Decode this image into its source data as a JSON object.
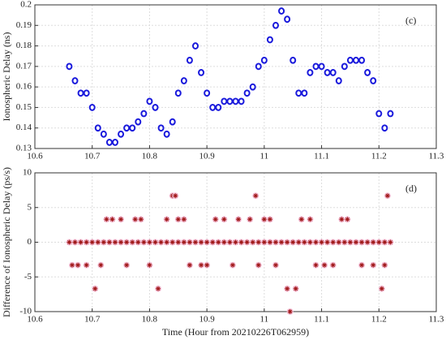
{
  "chart_data": [
    {
      "type": "scatter",
      "ylabel": "Ionospheric Delay (ns)",
      "annotation": "(c)",
      "color": "#1a1adc",
      "grid": true,
      "xlim": [
        10.6,
        11.3
      ],
      "xticks": [
        10.6,
        10.7,
        10.8,
        10.9,
        11,
        11.1,
        11.2,
        11.3
      ],
      "ylim": [
        0.13,
        0.2
      ],
      "yticks": [
        0.13,
        0.14,
        0.15,
        0.16,
        0.17,
        0.18,
        0.19,
        0.2
      ],
      "x": [
        10.66,
        10.67,
        10.68,
        10.69,
        10.7,
        10.71,
        10.72,
        10.73,
        10.74,
        10.75,
        10.76,
        10.77,
        10.78,
        10.79,
        10.8,
        10.81,
        10.82,
        10.83,
        10.84,
        10.85,
        10.86,
        10.87,
        10.88,
        10.89,
        10.9,
        10.91,
        10.92,
        10.93,
        10.94,
        10.95,
        10.96,
        10.97,
        10.98,
        10.99,
        11.0,
        11.01,
        11.02,
        11.03,
        11.04,
        11.05,
        11.06,
        11.07,
        11.08,
        11.09,
        11.1,
        11.11,
        11.12,
        11.13,
        11.14,
        11.15,
        11.16,
        11.17,
        11.18,
        11.19,
        11.2,
        11.21,
        11.22
      ],
      "values": [
        0.17,
        0.163,
        0.157,
        0.157,
        0.15,
        0.14,
        0.137,
        0.133,
        0.133,
        0.137,
        0.14,
        0.14,
        0.143,
        0.147,
        0.153,
        0.15,
        0.14,
        0.137,
        0.143,
        0.157,
        0.163,
        0.173,
        0.18,
        0.167,
        0.157,
        0.15,
        0.15,
        0.153,
        0.153,
        0.153,
        0.153,
        0.157,
        0.16,
        0.17,
        0.173,
        0.183,
        0.19,
        0.197,
        0.193,
        0.173,
        0.157,
        0.157,
        0.167,
        0.17,
        0.17,
        0.167,
        0.167,
        0.163,
        0.17,
        0.173,
        0.173,
        0.173,
        0.167,
        0.163,
        0.147,
        0.14,
        0.147
      ]
    },
    {
      "type": "scatter",
      "ylabel": "Difference of Ionospheric Delay  (ps/s)",
      "xlabel": "Time (Hour from 20210226T062959)",
      "annotation": "(d)",
      "color": "#a01818",
      "grid": true,
      "xlim": [
        10.6,
        11.3
      ],
      "xticks": [
        10.6,
        10.7,
        10.8,
        10.9,
        11,
        11.1,
        11.2,
        11.3
      ],
      "ylim": [
        -10,
        10
      ],
      "yticks": [
        -10,
        -5,
        0,
        5,
        10
      ],
      "x": [
        10.66,
        10.67,
        10.68,
        10.69,
        10.7,
        10.71,
        10.72,
        10.73,
        10.74,
        10.75,
        10.76,
        10.77,
        10.78,
        10.79,
        10.8,
        10.81,
        10.82,
        10.83,
        10.84,
        10.85,
        10.86,
        10.87,
        10.88,
        10.89,
        10.9,
        10.91,
        10.92,
        10.93,
        10.94,
        10.95,
        10.96,
        10.97,
        10.98,
        10.99,
        11.0,
        11.01,
        11.02,
        11.03,
        11.04,
        11.05,
        11.06,
        11.07,
        11.08,
        11.09,
        11.1,
        11.11,
        11.12,
        11.13,
        11.14,
        11.15,
        11.16,
        11.17,
        11.18,
        11.19,
        11.2,
        11.21,
        11.22,
        10.665,
        10.675,
        10.69,
        10.705,
        10.715,
        10.725,
        10.735,
        10.75,
        10.76,
        10.775,
        10.785,
        10.8,
        10.815,
        10.83,
        10.84,
        10.845,
        10.85,
        10.86,
        10.87,
        10.89,
        10.9,
        10.915,
        10.93,
        10.945,
        10.955,
        10.975,
        10.985,
        10.99,
        11.0,
        11.01,
        11.02,
        11.04,
        11.045,
        11.055,
        11.065,
        11.08,
        11.09,
        11.105,
        11.12,
        11.135,
        11.145,
        11.17,
        11.19,
        11.205,
        11.215,
        11.21
      ],
      "values": [
        0,
        0,
        0,
        0,
        0,
        0,
        0,
        0,
        0,
        0,
        0,
        0,
        0,
        0,
        0,
        0,
        0,
        0,
        0,
        0,
        0,
        0,
        0,
        0,
        0,
        0,
        0,
        0,
        0,
        0,
        0,
        0,
        0,
        0,
        0,
        0,
        0,
        0,
        0,
        0,
        0,
        0,
        0,
        0,
        0,
        0,
        0,
        0,
        0,
        0,
        0,
        0,
        0,
        0,
        0,
        0,
        0,
        -3.3,
        -3.3,
        -3.3,
        -6.7,
        -3.3,
        3.3,
        3.3,
        3.3,
        -3.3,
        3.3,
        3.3,
        -3.3,
        -6.7,
        3.3,
        6.7,
        6.7,
        3.3,
        3.3,
        -3.3,
        -3.3,
        -3.3,
        3.3,
        3.3,
        -3.3,
        3.3,
        3.3,
        6.7,
        -3.3,
        3.3,
        3.3,
        -3.3,
        -6.7,
        -10,
        -6.7,
        3.3,
        3.3,
        -3.3,
        -3.3,
        -3.3,
        3.3,
        3.3,
        -3.3,
        -3.3,
        -6.7,
        6.7,
        -3.3
      ]
    }
  ]
}
